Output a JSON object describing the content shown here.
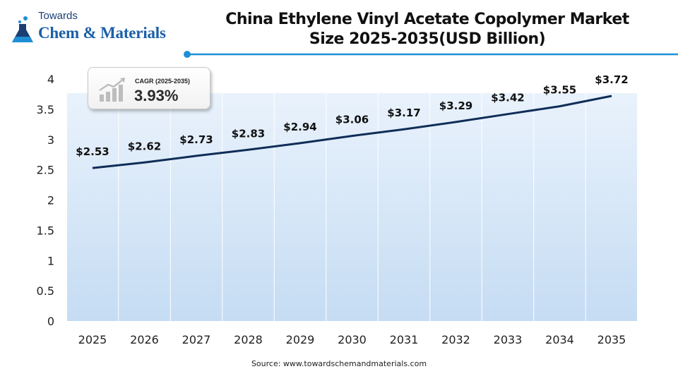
{
  "logo": {
    "line1": "Towards",
    "line2": "Chem & Materials"
  },
  "title_lines": [
    "China Ethylene Vinyl Acetate Copolymer Market",
    "Size 2025-2035(USD Billion)"
  ],
  "cagr": {
    "label": "CAGR (2025-2035)",
    "value": "3.93%"
  },
  "source": "Source: www.towardschemandmaterials.com",
  "colors": {
    "line": "#0f2d57",
    "accent": "#1e8fd5",
    "area_top": "#e9f2fc",
    "area_bottom": "#c5dcf3"
  },
  "chart_data": {
    "type": "line",
    "title": "China Ethylene Vinyl Acetate Copolymer Market Size 2025-2035(USD Billion)",
    "categories": [
      "2025",
      "2026",
      "2027",
      "2028",
      "2029",
      "2030",
      "2031",
      "2032",
      "2033",
      "2034",
      "2035"
    ],
    "values": [
      2.53,
      2.62,
      2.73,
      2.83,
      2.94,
      3.06,
      3.17,
      3.29,
      3.42,
      3.55,
      3.72
    ],
    "data_labels": [
      "$2.53",
      "$2.62",
      "$2.73",
      "$2.83",
      "$2.94",
      "$3.06",
      "$3.17",
      "$3.29",
      "$3.42",
      "$3.55",
      "$3.72"
    ],
    "yticks": [
      "0",
      "0.5",
      "1",
      "1.5",
      "2",
      "2.5",
      "3",
      "3.5",
      "4"
    ],
    "ylim": [
      0,
      4
    ],
    "grid": "vertical",
    "legend": "none"
  }
}
